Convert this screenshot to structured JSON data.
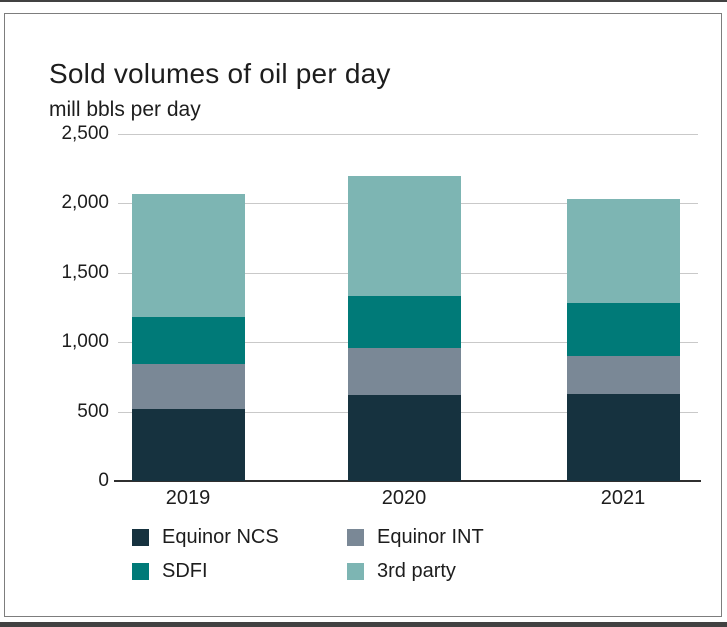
{
  "title": "Sold volumes of oil per day",
  "subtitle": "mill bbls per day",
  "chart_data": {
    "type": "bar",
    "stacked": true,
    "title": "Sold volumes of oil per day",
    "ylabel": "mill bbls per day",
    "categories": [
      "2019",
      "2020",
      "2021"
    ],
    "series": [
      {
        "name": "Equinor NCS",
        "color": "#16323f",
        "values": [
          520,
          620,
          630
        ]
      },
      {
        "name": "Equinor INT",
        "color": "#7a8896",
        "values": [
          325,
          340,
          270
        ]
      },
      {
        "name": "SDFI",
        "color": "#007a78",
        "values": [
          335,
          370,
          380
        ]
      },
      {
        "name": "3rd party",
        "color": "#7db5b3",
        "values": [
          885,
          870,
          755
        ]
      }
    ],
    "totals": [
      2065,
      2200,
      2035
    ],
    "ylim": [
      0,
      2500
    ],
    "ytick_interval": 500,
    "ytick_labels": [
      "0",
      "500",
      "1,000",
      "1,500",
      "2,000",
      "2,500"
    ],
    "grid": true,
    "legend_position": "bottom",
    "colors": {
      "gridline": "#c9c9c9",
      "axis": "#2f2f2f",
      "text": "#1d1d1d",
      "card_border": "#7d7d7d",
      "frame_edge": "#414141"
    }
  }
}
